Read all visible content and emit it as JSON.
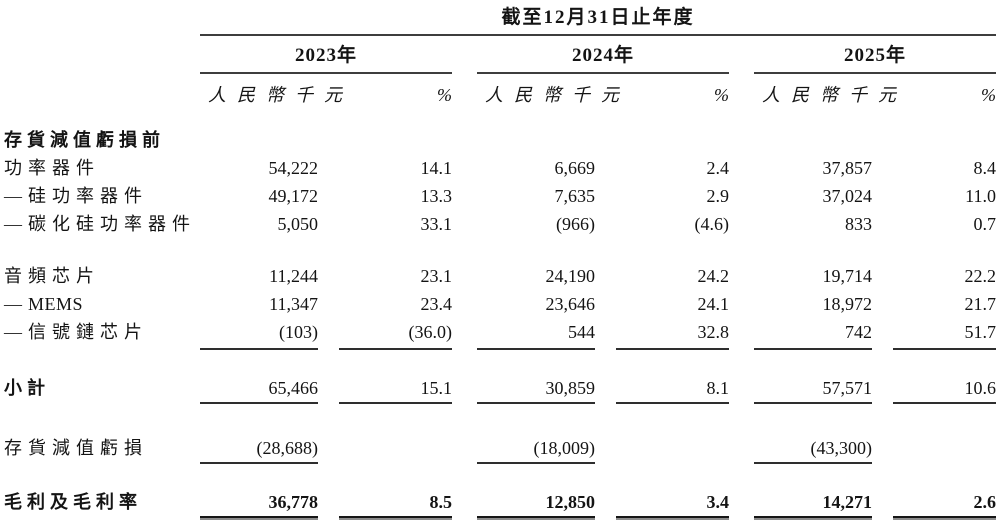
{
  "table": {
    "period_title": "截至12月31日止年度",
    "year_groups": [
      {
        "label": "2023年"
      },
      {
        "label": "2024年"
      },
      {
        "label": "2025年"
      }
    ],
    "column_headers": {
      "amount": "人民幣千元",
      "percent": "%"
    },
    "rows": [
      {
        "type": "section",
        "label": "存貨減值虧損前",
        "cells": [
          "",
          "",
          "",
          "",
          "",
          ""
        ]
      },
      {
        "type": "item",
        "label": "功率器件",
        "cells": [
          "54,222",
          "14.1",
          "6,669",
          "2.4",
          "37,857",
          "8.4"
        ]
      },
      {
        "type": "item",
        "label": "—硅功率器件",
        "cells": [
          "49,172",
          "13.3",
          "7,635",
          "2.9",
          "37,024",
          "11.0"
        ]
      },
      {
        "type": "item",
        "label": "—碳化硅功率器件",
        "cells": [
          "5,050",
          "33.1",
          "(966)",
          "(4.6)",
          "833",
          "0.7"
        ]
      },
      {
        "type": "spacer",
        "size": "md"
      },
      {
        "type": "item",
        "label": "音頻芯片",
        "cells": [
          "11,244",
          "23.1",
          "24,190",
          "24.2",
          "19,714",
          "22.2"
        ]
      },
      {
        "type": "item",
        "label": "—MEMS",
        "cells": [
          "11,347",
          "23.4",
          "23,646",
          "24.1",
          "18,972",
          "21.7"
        ]
      },
      {
        "type": "item",
        "rule": "all",
        "label": "—信號鏈芯片",
        "cells": [
          "(103)",
          "(36.0)",
          "544",
          "32.8",
          "742",
          "51.7"
        ]
      },
      {
        "type": "spacer",
        "size": "md"
      },
      {
        "type": "subtotal",
        "rule": "all",
        "label": "小計",
        "cells": [
          "65,466",
          "15.1",
          "30,859",
          "8.1",
          "57,571",
          "10.6"
        ]
      },
      {
        "type": "spacer",
        "size": "lg"
      },
      {
        "type": "item",
        "rule": "values",
        "label": "存貨減值虧損",
        "cells": [
          "(28,688)",
          "",
          "(18,009)",
          "",
          "(43,300)",
          ""
        ]
      },
      {
        "type": "spacer",
        "size": "md"
      },
      {
        "type": "total",
        "rule": "double",
        "label": "毛利及毛利率",
        "cells": [
          "36,778",
          "8.5",
          "12,850",
          "3.4",
          "14,271",
          "2.6"
        ]
      }
    ]
  }
}
